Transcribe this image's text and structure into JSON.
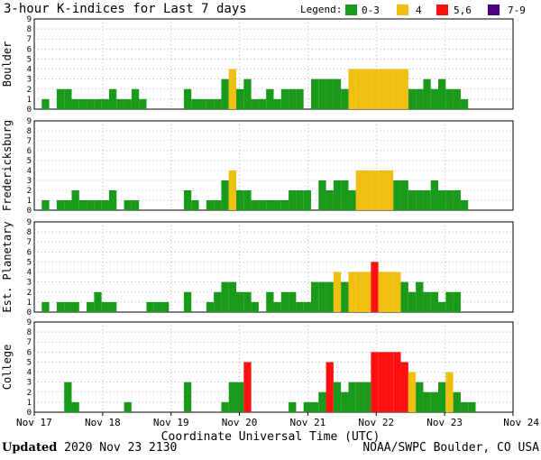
{
  "chart_data": {
    "type": "bar",
    "title": "3-hour K-indices for Last 7 days",
    "legend": {
      "label": "Legend:",
      "position": "top-right",
      "items": [
        {
          "label": "0-3",
          "color": "#1a9a1a"
        },
        {
          "label": "4",
          "color": "#f0c010"
        },
        {
          "label": "5,6",
          "color": "#ff1010"
        },
        {
          "label": "7-9",
          "color": "#4b0082"
        }
      ]
    },
    "ylim": [
      0,
      9
    ],
    "yticks": [
      "0",
      "1",
      "2",
      "3",
      "4",
      "5",
      "6",
      "7",
      "8",
      "9"
    ],
    "xlabel": "Coordinate Universal Time (UTC)",
    "x_ticks": [
      "Nov 17",
      "Nov 18",
      "Nov 19",
      "Nov 20",
      "Nov 21",
      "Nov 22",
      "Nov 23",
      "Nov 24"
    ],
    "bins_per_day": 8,
    "series": [
      {
        "name": "Boulder",
        "values": [
          0,
          1,
          0,
          2,
          2,
          1,
          1,
          1,
          1,
          1,
          2,
          1,
          1,
          2,
          1,
          0,
          0,
          0,
          0,
          0,
          2,
          1,
          1,
          1,
          1,
          3,
          4,
          2,
          3,
          1,
          1,
          2,
          1,
          2,
          2,
          2,
          0,
          3,
          3,
          3,
          3,
          2,
          4,
          4,
          4,
          4,
          4,
          4,
          4,
          4,
          2,
          2,
          3,
          2,
          3,
          2,
          2,
          1,
          0,
          0,
          0,
          0,
          0,
          0
        ]
      },
      {
        "name": "Fredericksburg",
        "values": [
          0,
          1,
          0,
          1,
          1,
          2,
          1,
          1,
          1,
          1,
          2,
          0,
          1,
          1,
          0,
          0,
          0,
          0,
          0,
          0,
          2,
          1,
          0,
          1,
          1,
          3,
          4,
          2,
          2,
          1,
          1,
          1,
          1,
          1,
          2,
          2,
          2,
          0,
          3,
          2,
          3,
          3,
          2,
          4,
          4,
          4,
          4,
          4,
          3,
          3,
          2,
          2,
          2,
          3,
          2,
          2,
          2,
          1,
          0,
          0,
          0,
          0,
          0,
          0
        ]
      },
      {
        "name": "Est. Planetary",
        "values": [
          0,
          1,
          0,
          1,
          1,
          1,
          0,
          1,
          2,
          1,
          1,
          0,
          0,
          0,
          0,
          1,
          1,
          1,
          0,
          0,
          2,
          0,
          0,
          1,
          2,
          3,
          3,
          2,
          2,
          1,
          0,
          2,
          1,
          2,
          2,
          1,
          1,
          3,
          3,
          3,
          4,
          3,
          4,
          4,
          4,
          5,
          4,
          4,
          4,
          3,
          2,
          3,
          2,
          2,
          1,
          2,
          2,
          0,
          0,
          0,
          0,
          0,
          0,
          0
        ]
      },
      {
        "name": "College",
        "values": [
          0,
          0,
          0,
          0,
          3,
          1,
          0,
          0,
          0,
          0,
          0,
          0,
          1,
          0,
          0,
          0,
          0,
          0,
          0,
          0,
          3,
          0,
          0,
          0,
          0,
          1,
          3,
          3,
          5,
          0,
          0,
          0,
          0,
          0,
          1,
          0,
          1,
          1,
          2,
          5,
          3,
          2,
          3,
          3,
          3,
          6,
          6,
          6,
          6,
          5,
          4,
          3,
          2,
          2,
          3,
          4,
          2,
          1,
          1,
          0,
          0,
          0,
          0,
          0
        ]
      }
    ]
  },
  "footer": {
    "updated_label": "Updated",
    "updated_value": "2020 Nov 23 2130",
    "credit": "NOAA/SWPC Boulder, CO USA"
  }
}
